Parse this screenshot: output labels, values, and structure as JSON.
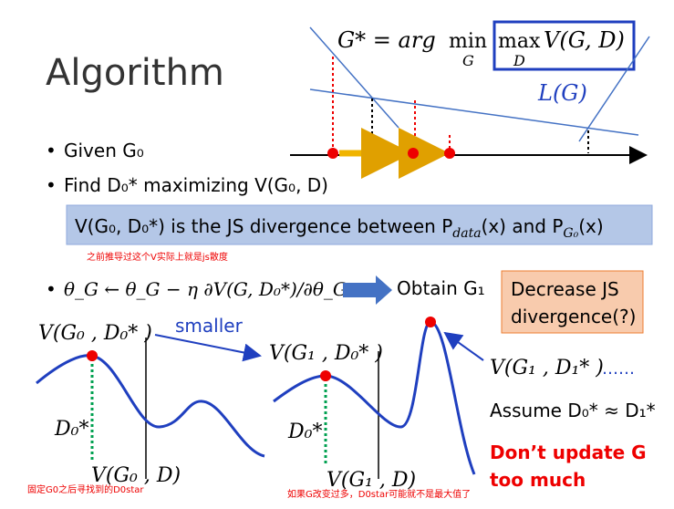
{
  "title": "Algorithm",
  "top_formula": {
    "lhs": "G* = arg",
    "min": "min",
    "min_sub": "G",
    "max": "max",
    "max_sub": "D",
    "rhs": "V(G, D)"
  },
  "curve_label": "L(G)",
  "bullets": [
    "Given G₀",
    "Find D₀* maximizing V(G₀, D)",
    "θ_G ← θ_G − η ∂V(G, D₀*)/∂θ_G"
  ],
  "highlight": {
    "a": "V(G₀, D₀*) is the JS divergence between P",
    "b": "data",
    "c": "(x) and P",
    "d": "G₀",
    "e": "(x)"
  },
  "note_1": "之前推导过这个V实际上就是js散度",
  "obtain": "Obtain G₁",
  "box": [
    "Decrease JS",
    "divergence(?)"
  ],
  "smaller": "smaller",
  "left_plot": {
    "y_label": "V(G₀ , D₀* )",
    "d_label": "D₀*",
    "x_label": "V(G₀ , D)"
  },
  "mid_plot": {
    "y_label": "V(G₁ , D₀* )",
    "d_label": "D₀*",
    "x_label": "V(G₁ , D)"
  },
  "right_label": "V(G₁ , D₁* )",
  "ellipsis": "……",
  "assume": "Assume D₀* ≈ D₁*",
  "warning": [
    "Don’t update G",
    "too much"
  ],
  "note_2": "固定G0之后寻找到的D0star",
  "note_3": "如果G改变过多，D0star可能就不是最大值了"
}
